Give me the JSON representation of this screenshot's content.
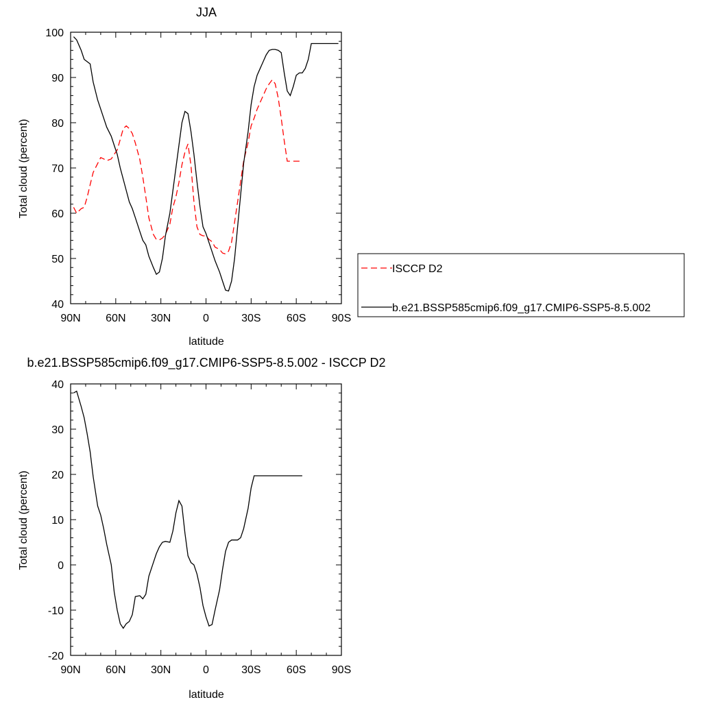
{
  "chart_data": [
    {
      "type": "line",
      "title": "JJA",
      "xlabel": "latitude",
      "ylabel": "Total cloud (percent)",
      "xlim": [
        -90,
        90
      ],
      "ylim": [
        40,
        100
      ],
      "xticks": [
        -90,
        -60,
        -30,
        0,
        30,
        60,
        90
      ],
      "xtick_labels": [
        "90N",
        "60N",
        "30N",
        "0",
        "30S",
        "60S",
        "90S"
      ],
      "yticks": [
        40,
        50,
        60,
        70,
        80,
        90,
        100
      ],
      "ytick_labels": [
        "40",
        "50",
        "60",
        "70",
        "80",
        "90",
        "100"
      ],
      "legend": "outside-right",
      "series": [
        {
          "name": "ISCCP D2",
          "color": "#ff0000",
          "dash": "dashed",
          "x": [
            -88,
            -86,
            -83,
            -81,
            -79,
            -77,
            -75,
            -72,
            -70,
            -68,
            -66,
            -63,
            -61,
            -59,
            -57,
            -55,
            -53,
            -51,
            -49,
            -47,
            -44,
            -42,
            -40,
            -38,
            -35,
            -33,
            -31,
            -29,
            -27,
            -24,
            -22,
            -20,
            -18,
            -16,
            -14,
            -12,
            -10,
            -8,
            -6,
            -4,
            -2,
            0,
            2,
            4,
            6,
            9,
            11,
            13,
            15,
            17,
            19,
            21,
            23,
            25,
            28,
            30,
            32,
            34,
            36,
            38,
            40,
            42,
            44,
            46,
            48,
            50,
            52,
            54,
            56,
            58,
            60,
            62,
            64
          ],
          "y": [
            61.3,
            60.0,
            61.0,
            61.3,
            63.5,
            66.3,
            69.0,
            71.0,
            72.3,
            72.0,
            71.6,
            72.0,
            73.0,
            74.0,
            76.3,
            78.7,
            79.3,
            78.7,
            77.6,
            75.5,
            71.9,
            68.0,
            63.6,
            59.0,
            55.3,
            54.2,
            54.1,
            54.5,
            55.3,
            57.6,
            61.3,
            63.6,
            66.8,
            70.7,
            73.5,
            75.3,
            70.5,
            62.5,
            57.0,
            55.3,
            55.0,
            55.0,
            54.2,
            53.7,
            52.5,
            52.0,
            51.2,
            51.0,
            51.6,
            53.6,
            58.0,
            62.5,
            67.0,
            71.5,
            75.6,
            79.3,
            81.0,
            83.0,
            84.5,
            86.0,
            87.5,
            88.6,
            89.5,
            88.6,
            85.5,
            81.0,
            76.0,
            71.5,
            71.5,
            71.5,
            71.5,
            71.5,
            71.5
          ]
        },
        {
          "name": "b.e21.BSSP585cmip6.f09_g17.CMIP6-SSP5-8.5.002",
          "color": "#000000",
          "dash": "solid",
          "x": [
            -88,
            -86,
            -83,
            -81,
            -79,
            -77,
            -75,
            -72,
            -70,
            -68,
            -66,
            -63,
            -61,
            -59,
            -57,
            -55,
            -53,
            -51,
            -49,
            -47,
            -44,
            -42,
            -40,
            -38,
            -35,
            -33,
            -31,
            -29,
            -27,
            -24,
            -22,
            -20,
            -18,
            -16,
            -14,
            -12,
            -10,
            -8,
            -6,
            -4,
            -2,
            0,
            2,
            4,
            6,
            9,
            11,
            13,
            15,
            17,
            19,
            21,
            23,
            25,
            28,
            30,
            32,
            34,
            36,
            38,
            40,
            42,
            44,
            46,
            48,
            50,
            52,
            54,
            56,
            58,
            60,
            62,
            64,
            66,
            68,
            70,
            72,
            74,
            76,
            78,
            80,
            82,
            84,
            86,
            88
          ],
          "y": [
            99.0,
            98.3,
            96.0,
            94.0,
            93.5,
            93.0,
            89.0,
            85.0,
            83.0,
            81.0,
            79.0,
            77.0,
            75.0,
            73.0,
            70.0,
            67.5,
            65.0,
            62.5,
            61.0,
            59.0,
            56.0,
            54.0,
            53.0,
            50.5,
            48.0,
            46.5,
            47.0,
            50.0,
            55.0,
            60.0,
            65.0,
            70.0,
            75.0,
            80.0,
            82.5,
            82.0,
            78.0,
            73.0,
            67.0,
            61.5,
            57.0,
            55.5,
            53.5,
            51.5,
            49.5,
            47.0,
            45.0,
            43.0,
            42.8,
            45.0,
            50.0,
            57.0,
            64.0,
            71.0,
            78.0,
            84.0,
            88.0,
            90.5,
            92.0,
            93.5,
            95.0,
            96.0,
            96.2,
            96.2,
            96.0,
            95.5,
            91.0,
            87.0,
            86.0,
            88.0,
            90.5,
            91.0,
            91.0,
            92.0,
            94.0,
            97.5,
            97.5,
            97.5,
            97.5,
            97.5,
            97.5,
            97.5,
            97.5,
            97.5,
            97.5
          ]
        }
      ]
    },
    {
      "type": "line",
      "title": "b.e21.BSSP585cmip6.f09_g17.CMIP6-SSP5-8.5.002 - ISCCP D2",
      "xlabel": "latitude",
      "ylabel": "Total cloud (percent)",
      "xlim": [
        -90,
        90
      ],
      "ylim": [
        -20,
        40
      ],
      "xticks": [
        -90,
        -60,
        -30,
        0,
        30,
        60,
        90
      ],
      "xtick_labels": [
        "90N",
        "60N",
        "30N",
        "0",
        "30S",
        "60S",
        "90S"
      ],
      "yticks": [
        -20,
        -10,
        0,
        10,
        20,
        30,
        40
      ],
      "ytick_labels": [
        "-20",
        "-10",
        "0",
        "10",
        "20",
        "30",
        "40"
      ],
      "series": [
        {
          "color": "#000000",
          "dash": "solid",
          "x": [
            -88,
            -86,
            -83,
            -81,
            -79,
            -77,
            -75,
            -72,
            -70,
            -68,
            -66,
            -63,
            -61,
            -59,
            -57,
            -55,
            -53,
            -51,
            -49,
            -47,
            -44,
            -42,
            -40,
            -38,
            -35,
            -33,
            -31,
            -29,
            -27,
            -24,
            -22,
            -20,
            -18,
            -16,
            -14,
            -12,
            -10,
            -8,
            -6,
            -4,
            -2,
            0,
            2,
            4,
            6,
            9,
            11,
            13,
            15,
            17,
            19,
            21,
            23,
            25,
            28,
            30,
            32,
            34,
            36,
            38,
            40,
            42,
            44,
            46,
            48,
            50,
            52,
            54,
            56,
            58,
            60,
            62,
            64
          ],
          "y": [
            38.0,
            38.4,
            35.0,
            32.5,
            29.0,
            25.0,
            19.5,
            13.0,
            11.0,
            8.0,
            4.5,
            0.0,
            -6.0,
            -10.0,
            -13.0,
            -14.0,
            -13.0,
            -12.5,
            -11.0,
            -7.0,
            -6.8,
            -7.5,
            -6.5,
            -2.5,
            0.5,
            2.5,
            4.0,
            5.0,
            5.2,
            5.0,
            7.5,
            11.5,
            14.2,
            13.0,
            7.0,
            2.0,
            0.5,
            0.0,
            -2.0,
            -5.0,
            -9.0,
            -11.5,
            -13.5,
            -13.2,
            -10.0,
            -5.5,
            -1.0,
            3.0,
            5.0,
            5.5,
            5.5,
            5.5,
            6.0,
            8.0,
            12.5,
            17.0,
            19.7,
            19.7,
            19.7,
            19.7,
            19.7,
            19.7,
            19.7,
            19.7,
            19.7,
            19.7,
            19.7,
            19.7,
            19.7,
            19.7,
            19.7,
            19.7,
            19.7
          ]
        }
      ]
    }
  ]
}
